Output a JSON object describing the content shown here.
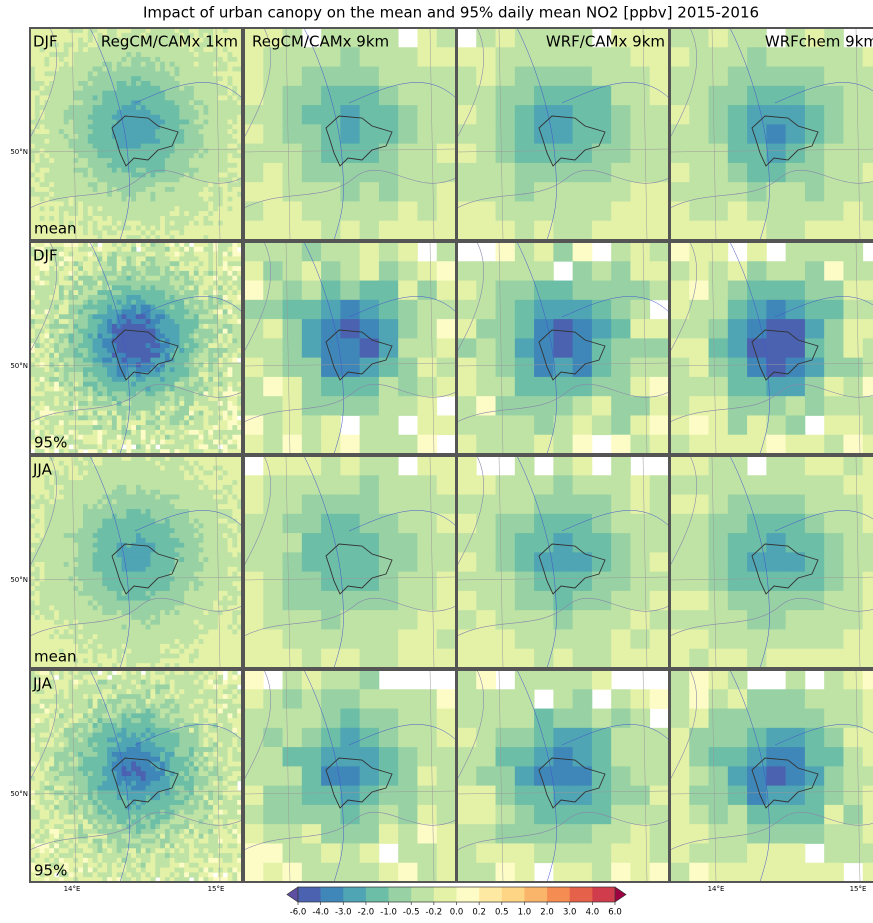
{
  "title": "Impact of urban canopy on the mean and 95% daily mean NO2 [ppbv] 2015-2016",
  "columns": [
    "RegCM/CAMx 1km",
    "RegCM/CAMx 9km",
    "WRF/CAMx 9km",
    "WRFchem 9km"
  ],
  "rows": [
    {
      "season": "DJF",
      "statistic": "mean"
    },
    {
      "season": "DJF",
      "statistic": "95%"
    },
    {
      "season": "JJA",
      "statistic": "mean"
    },
    {
      "season": "JJA",
      "statistic": "95%"
    }
  ],
  "latitude_label": "50°N",
  "longitude_labels": [
    "14°E",
    "15°E"
  ],
  "colorbar": {
    "ticks": [
      {
        "value": -6,
        "label": "-6.0"
      },
      {
        "value": -4,
        "label": "-4.0"
      },
      {
        "value": -3,
        "label": "-3.0"
      },
      {
        "value": -2,
        "label": "-2.0"
      },
      {
        "value": -1,
        "label": "-1.0"
      },
      -0.5,
      -0.2,
      {
        "value": 0,
        "label": "0.0"
      },
      0.2,
      0.5,
      {
        "value": 1,
        "label": "1.0"
      },
      {
        "value": 2,
        "label": "2.0"
      },
      {
        "value": 3,
        "label": "3.0"
      },
      {
        "value": 4,
        "label": "4.0"
      },
      {
        "value": 6,
        "label": "6.0"
      }
    ],
    "colors": [
      "#4a62b0",
      "#3f87b9",
      "#4fa5b3",
      "#6cbea6",
      "#98d2a4",
      "#bfe3a5",
      "#e4f2a8",
      "#fdfcc6",
      "#fee9a2",
      "#fdd585",
      "#fbb56b",
      "#f58c52",
      "#e5614a",
      "#d03c4c"
    ],
    "under_color": "#5e4fa2",
    "over_color": "#9e0142"
  }
}
